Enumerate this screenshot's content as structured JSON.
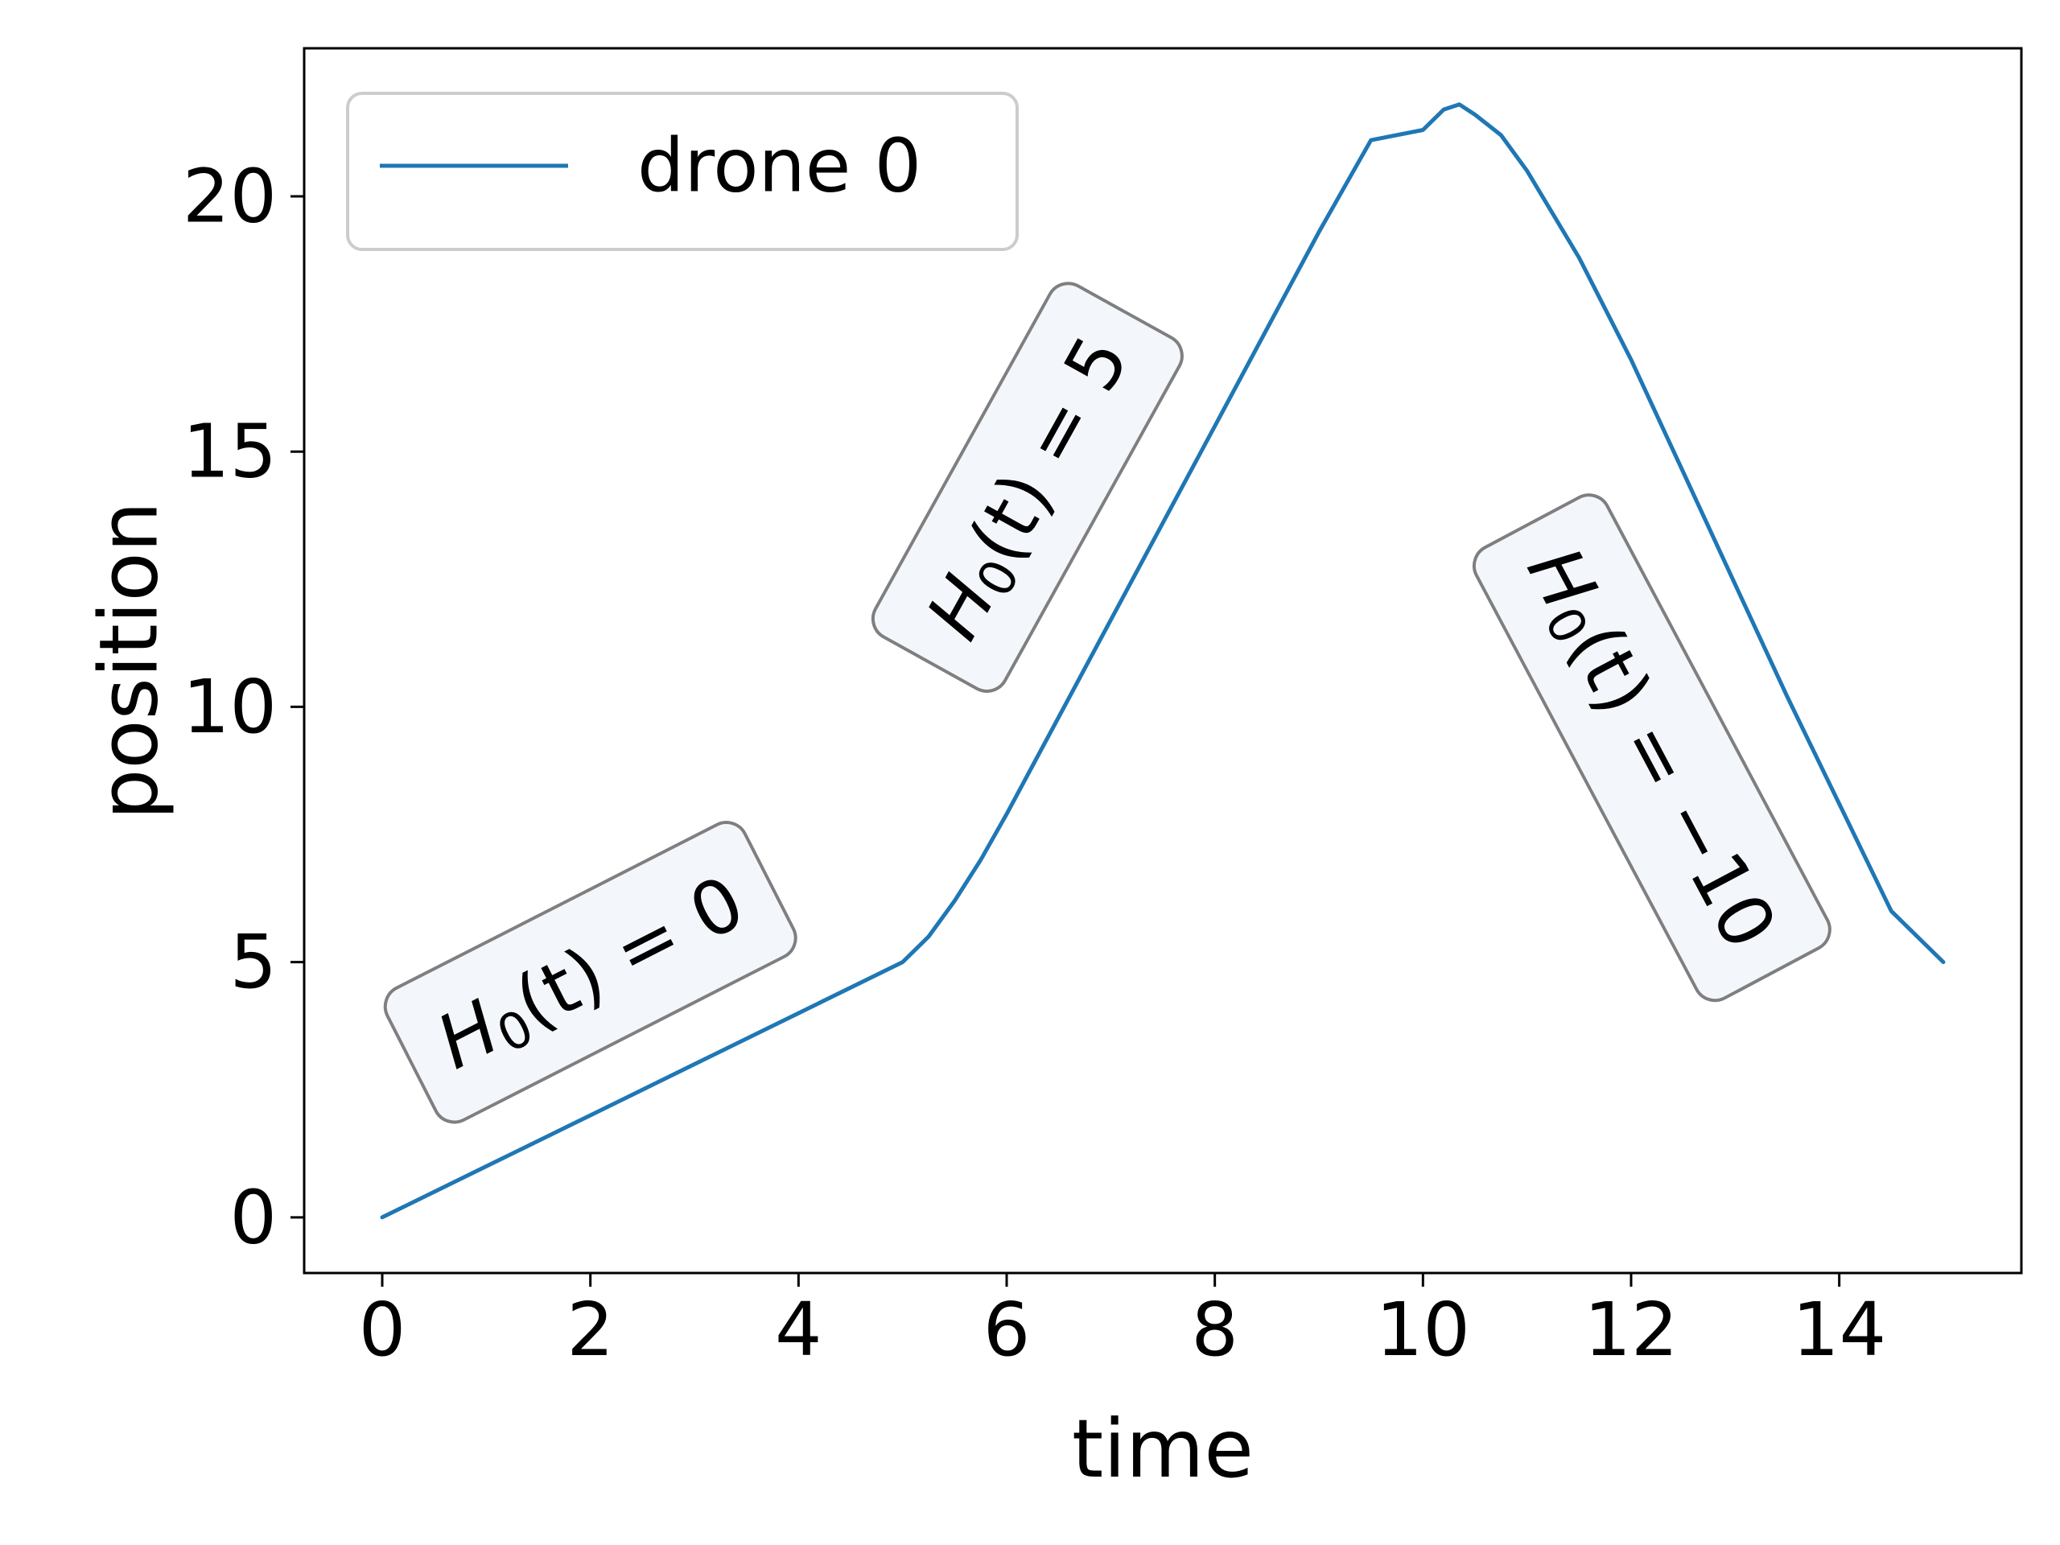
{
  "chart_data": {
    "type": "line",
    "title": "",
    "xlabel": "time",
    "ylabel": "position",
    "xlim": [
      -0.75,
      15.75
    ],
    "ylim": [
      -1.09,
      22.9
    ],
    "xticks": [
      0,
      2,
      4,
      6,
      8,
      10,
      12,
      14
    ],
    "yticks": [
      0,
      5,
      10,
      15,
      20
    ],
    "xtick_labels": [
      "0",
      "2",
      "4",
      "6",
      "8",
      "10",
      "12",
      "14"
    ],
    "ytick_labels": [
      "0",
      "5",
      "10",
      "15",
      "20"
    ],
    "grid": false,
    "legend": {
      "position": "upper-left",
      "entries": [
        "drone 0"
      ]
    },
    "series": [
      {
        "name": "drone 0",
        "color": "#1f77b4",
        "x": [
          0,
          1,
          2,
          3,
          4,
          5,
          5.25,
          5.5,
          5.75,
          6,
          6.5,
          7,
          7.5,
          8,
          8.5,
          9,
          9.5,
          10,
          10.2,
          10.35,
          10.5,
          10.75,
          11,
          11.5,
          12,
          12.5,
          13,
          13.5,
          14,
          14.5,
          15
        ],
        "y": [
          0,
          1,
          2,
          3,
          4,
          5,
          5.5,
          6.2,
          7,
          7.9,
          9.8,
          11.7,
          13.6,
          15.5,
          17.4,
          19.3,
          21.1,
          21.3,
          21.7,
          21.8,
          21.6,
          21.2,
          20.5,
          18.8,
          16.8,
          14.6,
          12.4,
          10.2,
          8.1,
          6.0,
          5.0
        ]
      }
    ],
    "annotations": [
      {
        "base": "H",
        "sub": "0",
        "rest": "(t) = 0",
        "x": 2.0,
        "y": 4.8,
        "rotation_deg": -27
      },
      {
        "base": "H",
        "sub": "0",
        "rest": "(t) = 5",
        "x": 6.2,
        "y": 14.3,
        "rotation_deg": -61
      },
      {
        "base": "H",
        "sub": "0",
        "rest": "(t) = −10",
        "x": 12.2,
        "y": 9.2,
        "rotation_deg": 62
      }
    ]
  }
}
